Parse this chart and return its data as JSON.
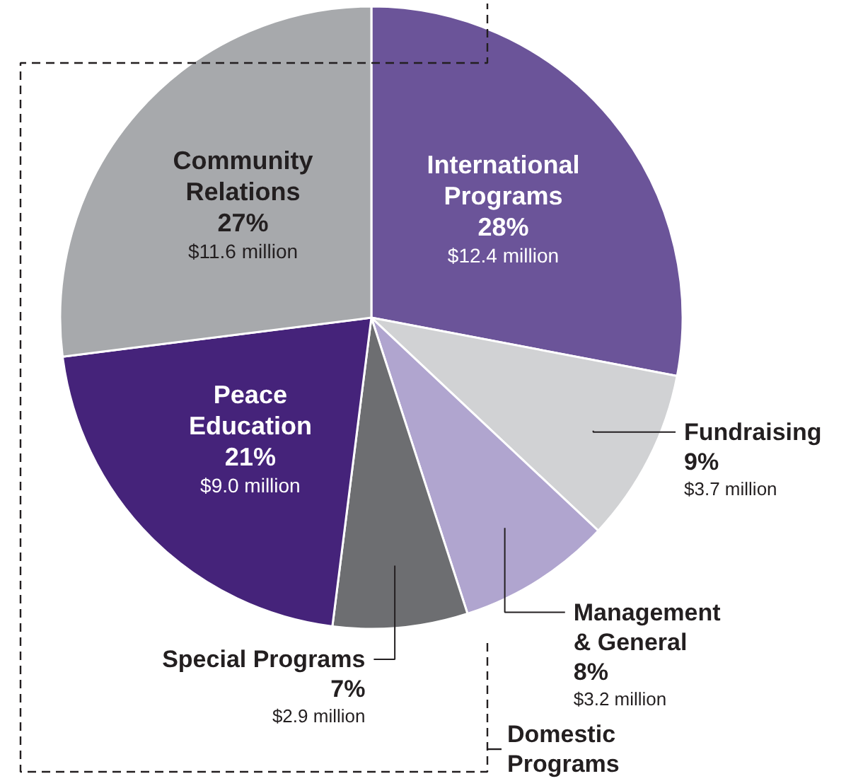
{
  "chart_data": {
    "type": "pie",
    "categories": [
      "International Programs",
      "Fundraising",
      "Management & General",
      "Special Programs",
      "Peace Education",
      "Community Relations"
    ],
    "values": [
      28,
      9,
      8,
      7,
      21,
      27
    ],
    "colors": [
      "#6b5499",
      "#d1d2d4",
      "#b0a5cf",
      "#6d6e71",
      "#45237a",
      "#a7a9ac"
    ],
    "value_labels": [
      "28%\n$12.4 million",
      "9%\n$3.7 million",
      "8%\n$3.2 million",
      "7%\n$2.9 million",
      "21%\n$9.0 million",
      "27%\n$11.6 million"
    ],
    "annotations": [
      "Domestic Programs"
    ]
  }
}
